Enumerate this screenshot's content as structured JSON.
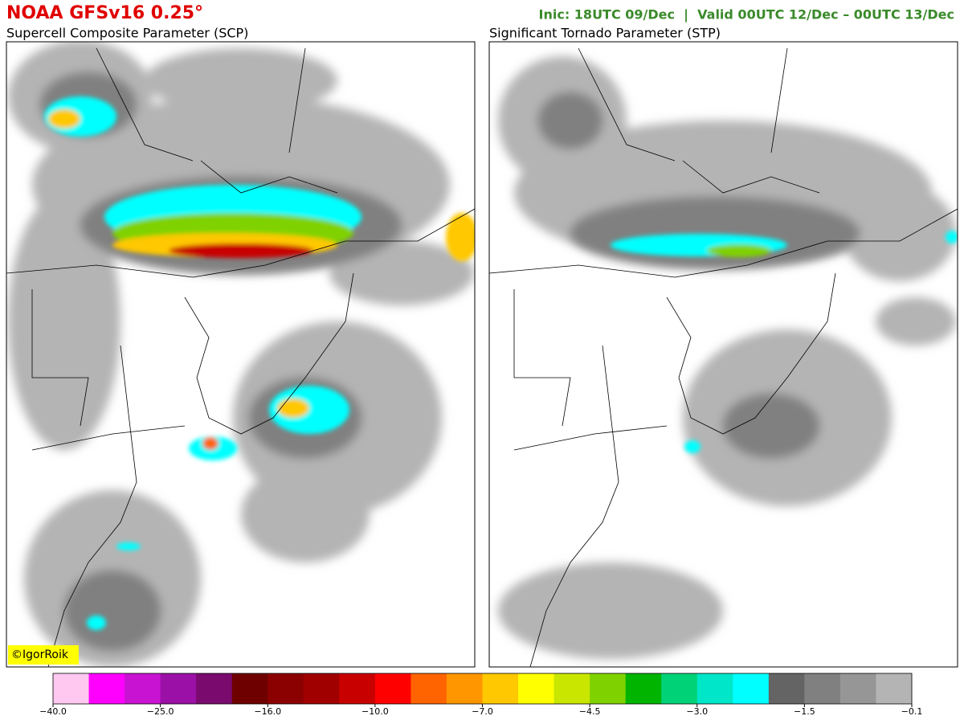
{
  "header": {
    "title": "NOAA GFSv16 0.25°",
    "run_info": "Inic: 18UTC 09/Dec  |  Valid 00UTC 12/Dec – 00UTC 13/Dec"
  },
  "panels": [
    {
      "title": "Supercell Composite Parameter (SCP)"
    },
    {
      "title": "Significant Tornado Parameter (STP)"
    }
  ],
  "credit": "©IgorRoik",
  "colorbar": {
    "colors": [
      "#ffc8f0",
      "#ff00ff",
      "#c814d2",
      "#9b10a6",
      "#7a0a6e",
      "#6e0000",
      "#8b0000",
      "#a00000",
      "#c80000",
      "#ff0000",
      "#ff6400",
      "#ff9600",
      "#ffc800",
      "#ffff00",
      "#c8e600",
      "#7fd200",
      "#00b400",
      "#00d278",
      "#00e6c8",
      "#00ffff",
      "#646464",
      "#808080",
      "#969696",
      "#b4b4b4"
    ],
    "ticks": [
      {
        "value": -40,
        "label": "−40.0"
      },
      {
        "value": -25,
        "label": "−25.0"
      },
      {
        "value": -16,
        "label": "−16.0"
      },
      {
        "value": -10,
        "label": "−10.0"
      },
      {
        "value": -7,
        "label": "−7.0"
      },
      {
        "value": -4.5,
        "label": "−4.5"
      },
      {
        "value": -3,
        "label": "−3.0"
      },
      {
        "value": -1.5,
        "label": "−1.5"
      },
      {
        "value": -0.1,
        "label": "−0.1"
      }
    ]
  }
}
